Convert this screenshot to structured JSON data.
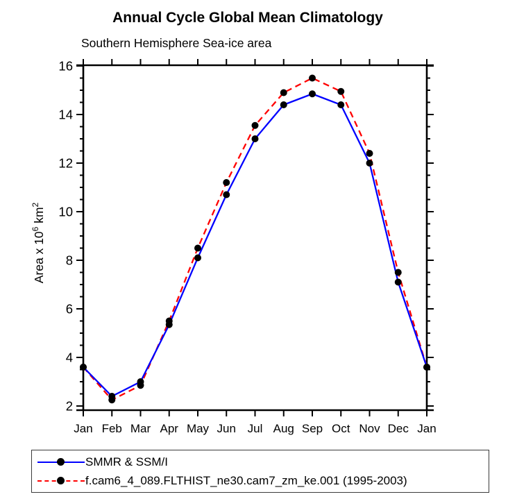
{
  "header": {
    "title": "Annual Cycle Global Mean Climatology",
    "subtitle": "Southern Hemisphere Sea-ice area"
  },
  "chart_data": {
    "type": "line",
    "title": "Annual Cycle Global Mean Climatology",
    "subtitle": "Southern Hemisphere Sea-ice area",
    "categories": [
      "Jan",
      "Feb",
      "Mar",
      "Apr",
      "May",
      "Jun",
      "Jul",
      "Aug",
      "Sep",
      "Oct",
      "Nov",
      "Dec",
      "Jan"
    ],
    "series": [
      {
        "name": "SMMR & SSM/I",
        "color": "#0000ff",
        "line_style": "solid",
        "marker": "filled-black-circle",
        "values": [
          3.6,
          2.4,
          3.0,
          5.35,
          8.1,
          10.7,
          13.0,
          14.4,
          14.85,
          14.4,
          12.0,
          7.1,
          3.6
        ]
      },
      {
        "name": "f.cam6_4_089.FLTHIST_ne30.cam7_zm_ke.001 (1995-2003)",
        "color": "#ff0000",
        "line_style": "dashed",
        "marker": "filled-black-circle",
        "values": [
          3.6,
          2.25,
          2.85,
          5.5,
          8.5,
          11.2,
          13.55,
          14.9,
          15.5,
          14.95,
          12.4,
          7.5,
          3.6
        ]
      }
    ],
    "xlabel": "",
    "ylabel": "Area x 10^6 km^2",
    "ylabel_parts": [
      {
        "text": "Area x 10"
      },
      {
        "text": "6",
        "super": true
      },
      {
        "text": " km"
      },
      {
        "text": "2",
        "super": true
      }
    ],
    "yticks": [
      2,
      4,
      6,
      8,
      10,
      12,
      14,
      16
    ],
    "y_minor_step": 0.5,
    "ylim": [
      1.8,
      16.05
    ],
    "grid": false,
    "tick_direction": "outward-mirrored",
    "legend_position": "bottom-box",
    "axis_color": "#000000",
    "marker_color": "#000000"
  },
  "legend": {
    "items": [
      {
        "label": "SMMR & SSM/I",
        "color": "#0000ff",
        "style": "solid"
      },
      {
        "label": "f.cam6_4_089.FLTHIST_ne30.cam7_zm_ke.001 (1995-2003)",
        "color": "#ff0000",
        "style": "dashed"
      }
    ]
  }
}
